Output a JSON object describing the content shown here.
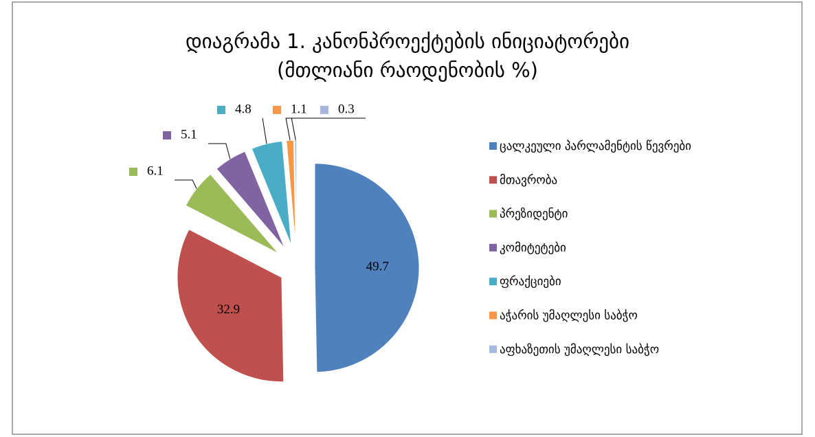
{
  "chart_data": {
    "type": "pie",
    "title": [
      "დიაგრამა 1. კანონპროექტების ინიციატორები",
      "(მთლიანი რაოდენობის %)"
    ],
    "categories": [
      "ცალკეული პარლამენტის წევრები",
      "მთავრობა",
      "პრეზიდენტი",
      "კომიტეტები",
      "ფრაქციები",
      "აჭარის უმაღლესი საბჭო",
      "აფხაზეთის უმაღლესი საბჭო"
    ],
    "values": [
      49.7,
      32.9,
      6.1,
      5.1,
      4.8,
      1.1,
      0.3
    ],
    "colors": [
      "#4f81bd",
      "#c0504d",
      "#9bbb59",
      "#8064a2",
      "#4bacc6",
      "#f79646",
      "#a5b9dc"
    ],
    "legend": "right"
  }
}
